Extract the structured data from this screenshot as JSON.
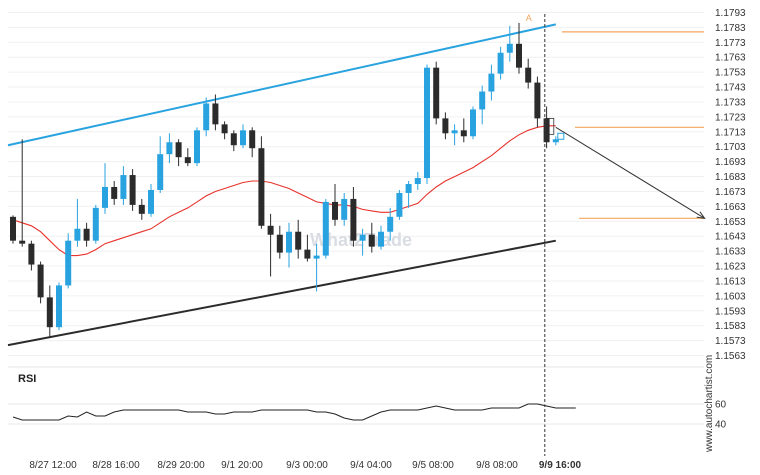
{
  "chart_data": {
    "type": "candlestick",
    "y_ticks": [
      "1.1793",
      "1.1783",
      "1.1773",
      "1.1763",
      "1.1753",
      "1.1743",
      "1.1733",
      "1.1723",
      "1.1713",
      "1.1703",
      "1.1693",
      "1.1683",
      "1.1673",
      "1.1663",
      "1.1653",
      "1.1643",
      "1.1633",
      "1.1623",
      "1.1613",
      "1.1603",
      "1.1593",
      "1.1583",
      "1.1573",
      "1.1563"
    ],
    "ylim": [
      1.1558,
      1.1796
    ],
    "x_ticks": [
      "8/27 12:00",
      "8/28 16:00",
      "8/29 20:00",
      "9/1 20:00",
      "9/3 00:00",
      "9/4 04:00",
      "9/5 08:00",
      "9/8 08:00",
      "9/9 16:00"
    ],
    "candles": [
      {
        "o": 1.1656,
        "h": 1.1657,
        "l": 1.1638,
        "c": 1.164
      },
      {
        "o": 1.164,
        "h": 1.1708,
        "l": 1.1636,
        "c": 1.1638
      },
      {
        "o": 1.1638,
        "h": 1.164,
        "l": 1.162,
        "c": 1.1624
      },
      {
        "o": 1.1624,
        "h": 1.1626,
        "l": 1.1598,
        "c": 1.1602
      },
      {
        "o": 1.1602,
        "h": 1.161,
        "l": 1.1575,
        "c": 1.1582
      },
      {
        "o": 1.1582,
        "h": 1.1612,
        "l": 1.158,
        "c": 1.161
      },
      {
        "o": 1.161,
        "h": 1.1645,
        "l": 1.1608,
        "c": 1.164
      },
      {
        "o": 1.164,
        "h": 1.1668,
        "l": 1.1636,
        "c": 1.1648
      },
      {
        "o": 1.1648,
        "h": 1.1652,
        "l": 1.1636,
        "c": 1.164
      },
      {
        "o": 1.164,
        "h": 1.1664,
        "l": 1.1638,
        "c": 1.1662
      },
      {
        "o": 1.1662,
        "h": 1.1692,
        "l": 1.1658,
        "c": 1.1676
      },
      {
        "o": 1.1676,
        "h": 1.168,
        "l": 1.1664,
        "c": 1.1668
      },
      {
        "o": 1.1668,
        "h": 1.169,
        "l": 1.1664,
        "c": 1.1684
      },
      {
        "o": 1.1684,
        "h": 1.1688,
        "l": 1.166,
        "c": 1.1664
      },
      {
        "o": 1.1664,
        "h": 1.1668,
        "l": 1.1654,
        "c": 1.1658
      },
      {
        "o": 1.1658,
        "h": 1.1678,
        "l": 1.1656,
        "c": 1.1674
      },
      {
        "o": 1.1674,
        "h": 1.171,
        "l": 1.1672,
        "c": 1.1698
      },
      {
        "o": 1.1698,
        "h": 1.1712,
        "l": 1.1692,
        "c": 1.1706
      },
      {
        "o": 1.1706,
        "h": 1.1708,
        "l": 1.169,
        "c": 1.1696
      },
      {
        "o": 1.1696,
        "h": 1.1702,
        "l": 1.169,
        "c": 1.1692
      },
      {
        "o": 1.1692,
        "h": 1.1716,
        "l": 1.169,
        "c": 1.1714
      },
      {
        "o": 1.1714,
        "h": 1.1736,
        "l": 1.171,
        "c": 1.1732
      },
      {
        "o": 1.1732,
        "h": 1.1738,
        "l": 1.1714,
        "c": 1.1718
      },
      {
        "o": 1.1718,
        "h": 1.172,
        "l": 1.1708,
        "c": 1.1712
      },
      {
        "o": 1.1712,
        "h": 1.1714,
        "l": 1.17,
        "c": 1.1704
      },
      {
        "o": 1.1704,
        "h": 1.1718,
        "l": 1.1702,
        "c": 1.1714
      },
      {
        "o": 1.1714,
        "h": 1.1716,
        "l": 1.1696,
        "c": 1.1702
      },
      {
        "o": 1.1702,
        "h": 1.171,
        "l": 1.1648,
        "c": 1.165
      },
      {
        "o": 1.165,
        "h": 1.1658,
        "l": 1.1616,
        "c": 1.1644
      },
      {
        "o": 1.1644,
        "h": 1.165,
        "l": 1.1628,
        "c": 1.1632
      },
      {
        "o": 1.1632,
        "h": 1.1652,
        "l": 1.1622,
        "c": 1.1646
      },
      {
        "o": 1.1646,
        "h": 1.1654,
        "l": 1.1628,
        "c": 1.1634
      },
      {
        "o": 1.1634,
        "h": 1.1644,
        "l": 1.1626,
        "c": 1.1628
      },
      {
        "o": 1.1628,
        "h": 1.1638,
        "l": 1.1606,
        "c": 1.163
      },
      {
        "o": 1.163,
        "h": 1.1668,
        "l": 1.1628,
        "c": 1.1666
      },
      {
        "o": 1.1666,
        "h": 1.1678,
        "l": 1.165,
        "c": 1.1654
      },
      {
        "o": 1.1654,
        "h": 1.1672,
        "l": 1.165,
        "c": 1.1668
      },
      {
        "o": 1.1668,
        "h": 1.1676,
        "l": 1.1636,
        "c": 1.164
      },
      {
        "o": 1.164,
        "h": 1.1648,
        "l": 1.163,
        "c": 1.1644
      },
      {
        "o": 1.1644,
        "h": 1.1652,
        "l": 1.1632,
        "c": 1.1636
      },
      {
        "o": 1.1636,
        "h": 1.165,
        "l": 1.1634,
        "c": 1.1646
      },
      {
        "o": 1.1646,
        "h": 1.1662,
        "l": 1.164,
        "c": 1.1656
      },
      {
        "o": 1.1656,
        "h": 1.1674,
        "l": 1.1654,
        "c": 1.1672
      },
      {
        "o": 1.1672,
        "h": 1.168,
        "l": 1.1662,
        "c": 1.1678
      },
      {
        "o": 1.1678,
        "h": 1.1686,
        "l": 1.1674,
        "c": 1.1682
      },
      {
        "o": 1.1682,
        "h": 1.1758,
        "l": 1.1678,
        "c": 1.1756
      },
      {
        "o": 1.1756,
        "h": 1.176,
        "l": 1.1718,
        "c": 1.1722
      },
      {
        "o": 1.1722,
        "h": 1.1726,
        "l": 1.1708,
        "c": 1.1712
      },
      {
        "o": 1.1712,
        "h": 1.1718,
        "l": 1.1704,
        "c": 1.1714
      },
      {
        "o": 1.1714,
        "h": 1.1722,
        "l": 1.1706,
        "c": 1.171
      },
      {
        "o": 1.171,
        "h": 1.173,
        "l": 1.1708,
        "c": 1.1728
      },
      {
        "o": 1.1728,
        "h": 1.1744,
        "l": 1.1718,
        "c": 1.174
      },
      {
        "o": 1.174,
        "h": 1.1758,
        "l": 1.1734,
        "c": 1.1752
      },
      {
        "o": 1.1752,
        "h": 1.177,
        "l": 1.1748,
        "c": 1.1766
      },
      {
        "o": 1.1766,
        "h": 1.1784,
        "l": 1.176,
        "c": 1.1772
      },
      {
        "o": 1.1772,
        "h": 1.1786,
        "l": 1.1752,
        "c": 1.1756
      },
      {
        "o": 1.1756,
        "h": 1.1762,
        "l": 1.1742,
        "c": 1.1746
      },
      {
        "o": 1.1746,
        "h": 1.175,
        "l": 1.1716,
        "c": 1.1722
      },
      {
        "o": 1.1722,
        "h": 1.173,
        "l": 1.1702,
        "c": 1.1706
      },
      {
        "o": 1.1706,
        "h": 1.171,
        "l": 1.1704,
        "c": 1.1708
      }
    ],
    "moving_average": [
      1.1654,
      1.1652,
      1.165,
      1.1646,
      1.164,
      1.1634,
      1.163,
      1.163,
      1.1631,
      1.1634,
      1.1638,
      1.164,
      1.1642,
      1.1644,
      1.1646,
      1.1648,
      1.1652,
      1.1656,
      1.1659,
      1.1662,
      1.1666,
      1.167,
      1.1673,
      1.1675,
      1.1677,
      1.1679,
      1.168,
      1.168,
      1.1679,
      1.1677,
      1.1675,
      1.1672,
      1.1669,
      1.1666,
      1.1665,
      1.1664,
      1.1664,
      1.1663,
      1.1661,
      1.166,
      1.1659,
      1.1659,
      1.1661,
      1.1663,
      1.1665,
      1.1671,
      1.1676,
      1.168,
      1.1683,
      1.1686,
      1.1689,
      1.1693,
      1.1697,
      1.1702,
      1.1707,
      1.1711,
      1.1714,
      1.1716,
      1.1717,
      1.1717
    ],
    "channel_upper": {
      "from": [
        0,
        1.1704
      ],
      "to": [
        59,
        1.1785
      ]
    },
    "channel_lower": {
      "from": [
        0,
        1.157
      ],
      "to": [
        59,
        1.164
      ]
    },
    "resistance_level": 1.178,
    "entry_level": 1.1716,
    "target_level": 1.1655,
    "forecast_arrow": {
      "from": [
        59,
        1.1716
      ],
      "to": [
        73,
        1.1655
      ]
    },
    "pattern_point_label": "A",
    "rsi": {
      "title": "RSI",
      "y_ticks": [
        "60",
        "40"
      ],
      "ylim": [
        20,
        80
      ],
      "values": [
        47,
        44,
        44,
        44,
        44,
        44,
        48,
        47,
        52,
        48,
        48,
        52,
        54,
        54,
        54,
        54,
        54,
        54,
        54,
        52,
        52,
        52,
        50,
        50,
        52,
        52,
        52,
        54,
        54,
        54,
        54,
        54,
        54,
        52,
        52,
        50,
        46,
        44,
        44,
        48,
        52,
        54,
        54,
        54,
        54,
        56,
        58,
        56,
        54,
        54,
        54,
        54,
        56,
        56,
        56,
        56,
        60,
        60,
        58,
        56
      ]
    },
    "brand": "www.autochartist.com",
    "watermark": "What2Trade"
  }
}
